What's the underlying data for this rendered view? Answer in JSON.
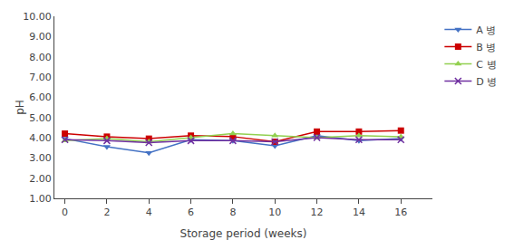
{
  "chart_data": {
    "type": "line",
    "x_label": "Storage period (weeks)",
    "y_label": "pH",
    "x": [
      0,
      2,
      4,
      6,
      8,
      10,
      12,
      14,
      16
    ],
    "series": [
      {
        "name": "A 병",
        "color": "#4472C4",
        "marker": "triangle-down",
        "values": [
          3.95,
          3.55,
          3.25,
          3.9,
          3.85,
          3.6,
          4.1,
          3.85,
          3.95
        ]
      },
      {
        "name": "B 병",
        "color": "#CC0000",
        "marker": "square",
        "values": [
          4.2,
          4.05,
          3.95,
          4.1,
          4.05,
          3.8,
          4.3,
          4.3,
          4.35
        ]
      },
      {
        "name": "C 병",
        "color": "#92D050",
        "marker": "triangle-up",
        "values": [
          3.85,
          3.95,
          3.8,
          4.0,
          4.2,
          4.1,
          4.0,
          4.1,
          4.05
        ]
      },
      {
        "name": "D 병",
        "color": "#7030A0",
        "marker": "x",
        "values": [
          3.9,
          3.85,
          3.75,
          3.85,
          3.85,
          3.8,
          4.0,
          3.9,
          3.9
        ]
      }
    ],
    "xlim": [
      -0.5,
      17.5
    ],
    "xticks": [
      0,
      2,
      4,
      6,
      8,
      10,
      12,
      14,
      16
    ],
    "ylim": [
      1.0,
      10.0
    ],
    "yticks": [
      {
        "value": 1.0,
        "label": "1.00"
      },
      {
        "value": 2.0,
        "label": "2.00"
      },
      {
        "value": 3.0,
        "label": "3.00"
      },
      {
        "value": 4.0,
        "label": "4.00"
      },
      {
        "value": 5.0,
        "label": "5.00"
      },
      {
        "value": 6.0,
        "label": "6.00"
      },
      {
        "value": 7.0,
        "label": "7.00"
      },
      {
        "value": 8.0,
        "label": "8.00"
      },
      {
        "value": 9.0,
        "label": "9.00"
      },
      {
        "value": 10.0,
        "label": "10.00"
      }
    ],
    "grid": false,
    "legend": "right"
  }
}
